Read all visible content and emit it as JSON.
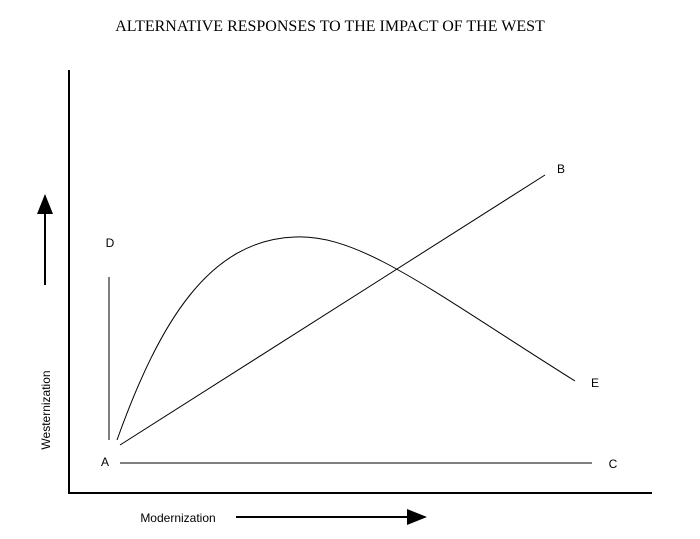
{
  "header": {
    "title": "ALTERNATIVE RESPONSES TO THE IMPACT OF THE WEST"
  },
  "axes": {
    "x_label": "Modernization",
    "y_label": "Westernization"
  },
  "nodes": [
    {
      "label": "A"
    },
    {
      "label": "B"
    },
    {
      "label": "C"
    },
    {
      "label": "D"
    },
    {
      "label": "E"
    }
  ]
}
